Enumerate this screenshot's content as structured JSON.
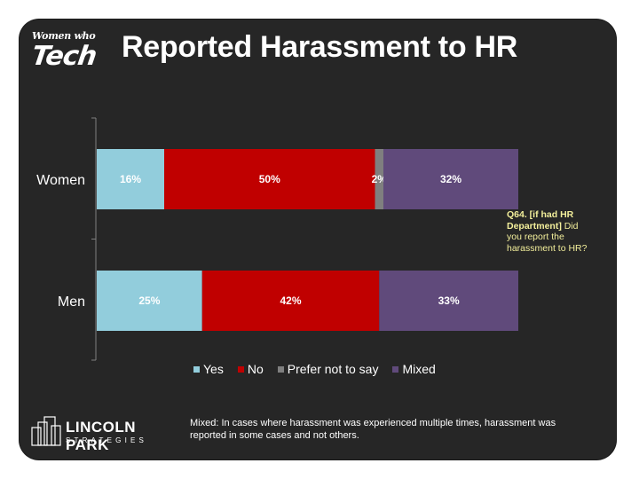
{
  "header": {
    "title": "Reported Harassment to HR",
    "logo_line1": "Women who",
    "logo_line2": "Tech"
  },
  "chart_data": {
    "type": "bar",
    "orientation": "horizontal",
    "stacked": true,
    "percent_stacked": true,
    "categories": [
      "Women",
      "Men"
    ],
    "series": [
      {
        "name": "Yes",
        "values": [
          16,
          25
        ],
        "labels": [
          "16%",
          "25%"
        ],
        "color": "#92cddc"
      },
      {
        "name": "No",
        "values": [
          50,
          42
        ],
        "labels": [
          "50%",
          "42%"
        ],
        "color": "#c00000"
      },
      {
        "name": "Prefer not to say",
        "values": [
          2,
          0
        ],
        "labels": [
          "2%",
          ""
        ],
        "color": "#7f7f7f"
      },
      {
        "name": "Mixed",
        "values": [
          32,
          33
        ],
        "labels": [
          "32%",
          "33%"
        ],
        "color": "#604a7b"
      }
    ],
    "legend_position": "bottom",
    "grid": false
  },
  "question": {
    "bold": "Q64. [if had HR Department]",
    "text": " Did you report the harassment to HR?"
  },
  "footer": {
    "footnote": "Mixed: In cases where harassment was experienced multiple times, harassment was reported in some cases and not others.",
    "brand_line1": "LINCOLN PARK",
    "brand_line2": "STRATEGIES"
  },
  "colors": {
    "slide_bg": "#262626",
    "question_text": "#f3ef9b",
    "data_label": "#ffffff"
  }
}
